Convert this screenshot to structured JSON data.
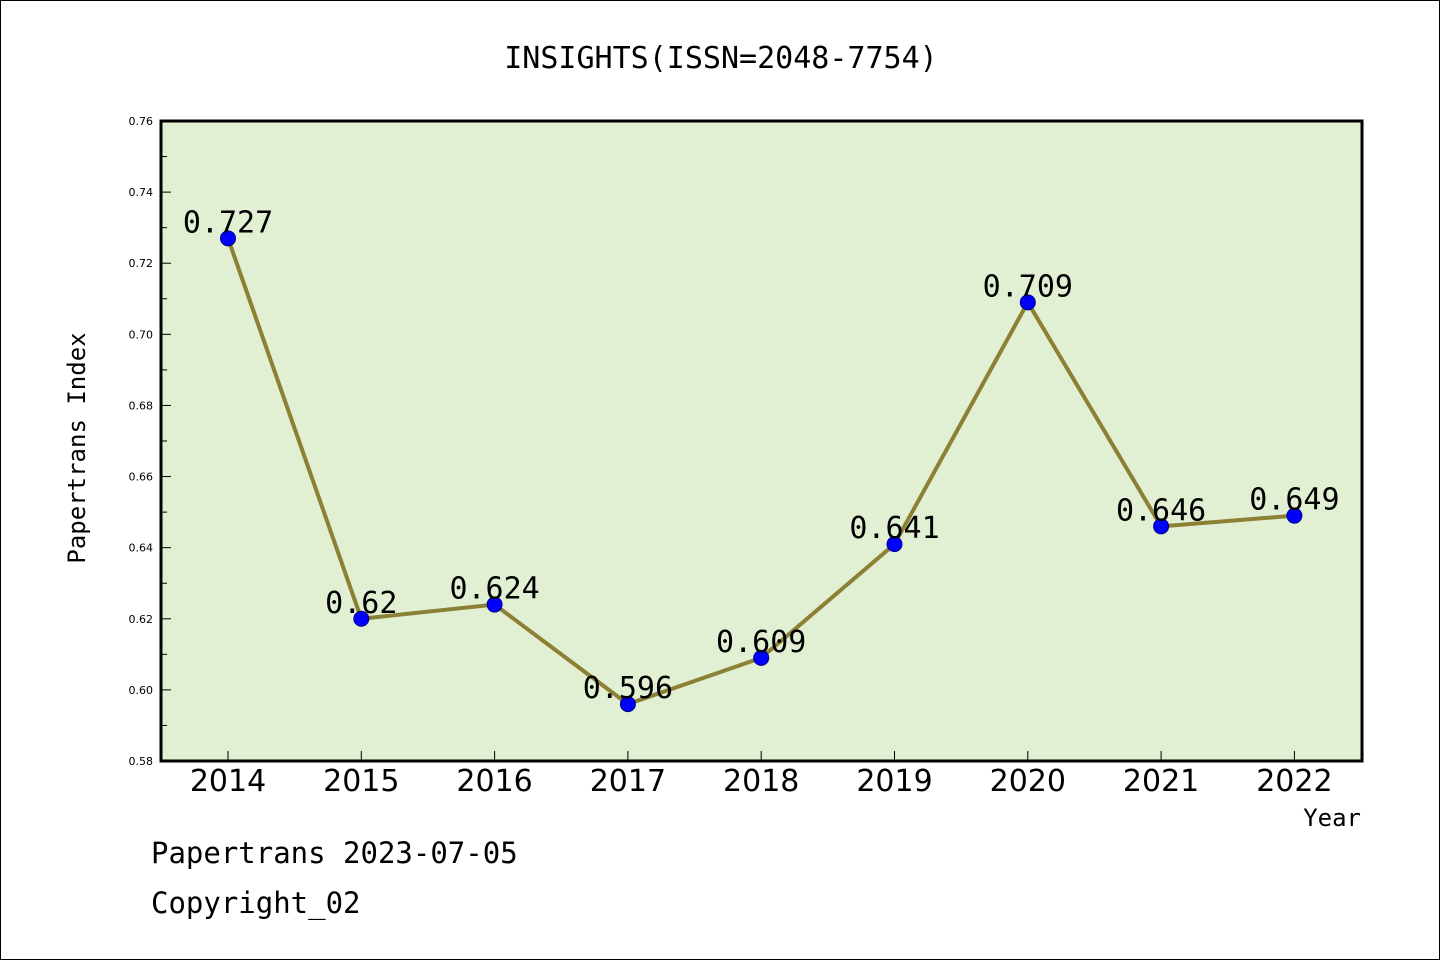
{
  "chart_data": {
    "type": "line",
    "title": "INSIGHTS(ISSN=2048-7754)",
    "xlabel": "Year",
    "ylabel": "Papertrans Index",
    "categories": [
      "2014",
      "2015",
      "2016",
      "2017",
      "2018",
      "2019",
      "2020",
      "2021",
      "2022"
    ],
    "values": [
      0.727,
      0.62,
      0.624,
      0.596,
      0.609,
      0.641,
      0.709,
      0.646,
      0.649
    ],
    "data_labels": [
      "0.727",
      "0.62",
      "0.624",
      "0.596",
      "0.609",
      "0.641",
      "0.709",
      "0.646",
      "0.649"
    ],
    "ylim": [
      0.58,
      0.76
    ],
    "yticks": [
      "0.58",
      "0.60",
      "0.62",
      "0.64",
      "0.66",
      "0.68",
      "0.70",
      "0.72",
      "0.74",
      "0.76"
    ],
    "grid": false,
    "colors": {
      "line": "#8b8034",
      "marker": "#0000ff",
      "plot_background": "#e1efd3"
    }
  },
  "footer": {
    "source": "Papertrans 2023-07-05",
    "copyright": "Copyright_02"
  }
}
